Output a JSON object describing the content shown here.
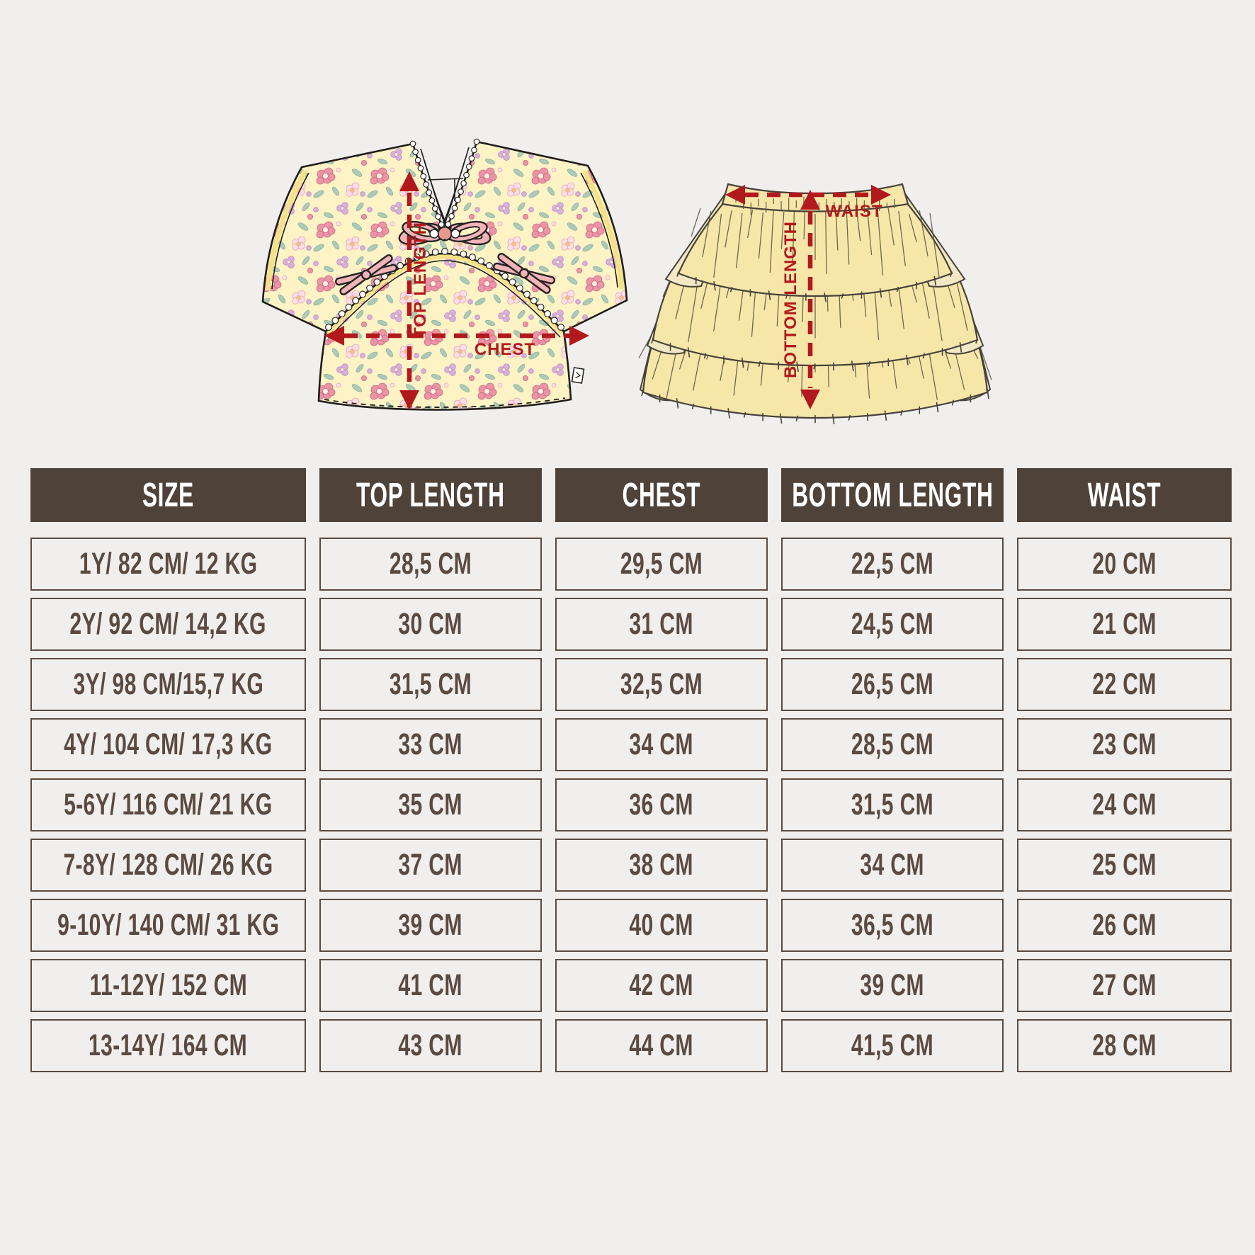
{
  "page": {
    "background": "#f0efed",
    "accent_red": "#b2191d"
  },
  "diagram": {
    "top_garment": {
      "top_length_label": "TOP LENGTH",
      "chest_label": "CHEST",
      "fabric": {
        "base": "#fdf3c5",
        "pink": "#ec93a7",
        "light_pink": "#fbdde6",
        "lilac": "#d9afdc",
        "green": "#abcbb8",
        "piping": "#f5e187"
      }
    },
    "skirt": {
      "waist_label": "WAIST",
      "bottom_length_label": "BOTTOM LENGTH",
      "fabric": {
        "base": "#f6e7a9",
        "light": "#f2e8c5"
      }
    }
  },
  "table": {
    "header_bg": "#4f4239",
    "text_color": "#5b4a41",
    "columns": [
      "SIZE",
      "TOP LENGTH",
      "CHEST",
      "BOTTOM LENGTH",
      "WAIST"
    ],
    "rows": [
      [
        "1Y/ 82 CM/ 12 KG",
        "28,5 CM",
        "29,5 CM",
        "22,5 CM",
        "20 CM"
      ],
      [
        "2Y/ 92 CM/ 14,2 KG",
        "30 CM",
        "31 CM",
        "24,5 CM",
        "21 CM"
      ],
      [
        "3Y/ 98 CM/15,7 KG",
        "31,5 CM",
        "32,5 CM",
        "26,5 CM",
        "22 CM"
      ],
      [
        "4Y/ 104 CM/ 17,3 KG",
        "33 CM",
        "34 CM",
        "28,5 CM",
        "23 CM"
      ],
      [
        "5-6Y/ 116 CM/ 21 KG",
        "35 CM",
        "36 CM",
        "31,5 CM",
        "24 CM"
      ],
      [
        "7-8Y/ 128 CM/ 26 KG",
        "37 CM",
        "38 CM",
        "34 CM",
        "25 CM"
      ],
      [
        "9-10Y/ 140 CM/ 31 KG",
        "39 CM",
        "40 CM",
        "36,5 CM",
        "26 CM"
      ],
      [
        "11-12Y/ 152 CM",
        "41 CM",
        "42 CM",
        "39 CM",
        "27 CM"
      ],
      [
        "13-14Y/ 164 CM",
        "43 CM",
        "44 CM",
        "41,5 CM",
        "28 CM"
      ]
    ]
  }
}
